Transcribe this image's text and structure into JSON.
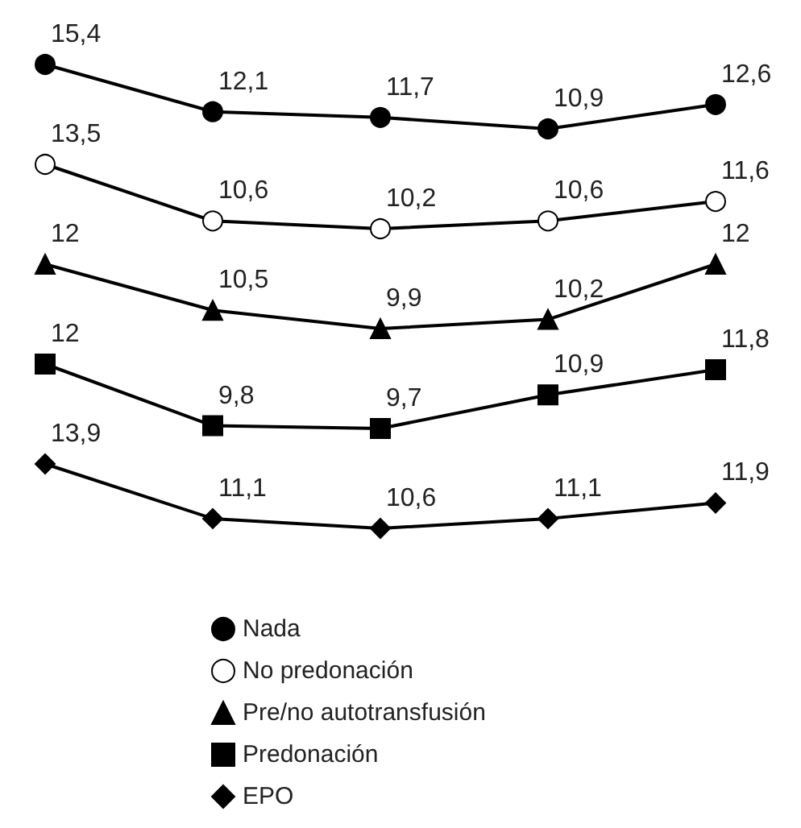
{
  "chart_data": [
    {
      "type": "line",
      "categories": [
        null,
        null,
        null,
        null,
        null
      ],
      "legend": "bottom",
      "tick_labels": false,
      "line_style": "solid",
      "series": [
        {
          "name": "Nada",
          "color": "#000000",
          "marker": "circle",
          "values": [
            15.4,
            12.1,
            11.7,
            10.9,
            12.6
          ],
          "value_labels": [
            "15,4",
            "12,1",
            "11,7",
            "10,9",
            "12,6"
          ]
        }
      ]
    },
    {
      "type": "line",
      "categories": [
        null,
        null,
        null,
        null,
        null
      ],
      "legend": "bottom",
      "tick_labels": false,
      "line_style": "solid",
      "series": [
        {
          "name": "No predonación",
          "color": "#000000",
          "marker": "open_circle",
          "values": [
            13.5,
            10.6,
            10.2,
            10.6,
            11.6
          ],
          "value_labels": [
            "13,5",
            "10,6",
            "10,2",
            "10,6",
            "11,6"
          ]
        }
      ]
    },
    {
      "type": "line",
      "categories": [
        null,
        null,
        null,
        null,
        null
      ],
      "legend": "bottom",
      "tick_labels": false,
      "line_style": "solid",
      "series": [
        {
          "name": "Pre/no autotransfusión",
          "color": "#000000",
          "marker": "triangle",
          "values": [
            12,
            10.5,
            9.9,
            10.2,
            12
          ],
          "value_labels": [
            "12",
            "10,5",
            "9,9",
            "10,2",
            "12"
          ]
        }
      ]
    },
    {
      "type": "line",
      "categories": [
        null,
        null,
        null,
        null,
        null
      ],
      "legend": "bottom",
      "tick_labels": false,
      "line_style": "solid",
      "series": [
        {
          "name": "Predonación",
          "color": "#000000",
          "marker": "square",
          "values": [
            12,
            9.8,
            9.7,
            10.9,
            11.8
          ],
          "value_labels": [
            "12",
            "9,8",
            "9,7",
            "10,9",
            "11,8"
          ]
        }
      ]
    },
    {
      "type": "line",
      "categories": [
        null,
        null,
        null,
        null,
        null
      ],
      "legend": "bottom",
      "tick_labels": false,
      "line_style": "solid",
      "series": [
        {
          "name": "EPO",
          "color": "#000000",
          "marker": "diamond",
          "values": [
            13.9,
            11.1,
            10.6,
            11.1,
            11.9
          ],
          "value_labels": [
            "13,9",
            "11,1",
            "10,6",
            "11,1",
            "11,9"
          ]
        }
      ]
    }
  ]
}
